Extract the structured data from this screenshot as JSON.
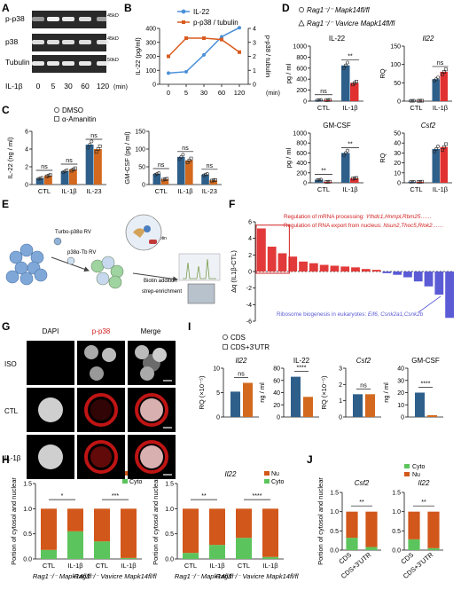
{
  "panels": {
    "A": {
      "letter": "A",
      "blots": [
        "p-p38",
        "p38",
        "Tubulin"
      ],
      "kda": [
        "45kD",
        "45kD",
        "50kD"
      ],
      "treatment": "IL-1β",
      "times": [
        "0",
        "5",
        "30",
        "60",
        "120"
      ],
      "unit": "(min)"
    },
    "B": {
      "letter": "B"
    },
    "C": {
      "letter": "C"
    },
    "D": {
      "letter": "D"
    },
    "E": {
      "letter": "E",
      "text_turbo": "Turbo-p38α RV",
      "text_p38tb": "p38α-Tb RV",
      "text_biotin": "biotin",
      "text_biotin_add": "Biotin addition",
      "text_strep": "strep-enrichment"
    },
    "F": {
      "letter": "F"
    },
    "G": {
      "letter": "G",
      "cols": [
        "DAPI",
        "p-p38",
        "Merge"
      ],
      "rows": [
        "ISO",
        "CTL",
        "IL-1β"
      ]
    },
    "H": {
      "letter": "H"
    },
    "I": {
      "letter": "I"
    },
    "J": {
      "letter": "J"
    }
  },
  "colors": {
    "blue": "#2e5f8a",
    "orange": "#d2691e",
    "red": "#e03030",
    "salmon": "#f08070",
    "lineblue": "#4a90d9",
    "lineorange": "#d95b1f",
    "green": "#5cc45c",
    "nuorange": "#d2571a",
    "fred": "#e23a3a",
    "fblue": "#5b5bd6"
  },
  "chart_data": [
    {
      "id": "B",
      "type": "line",
      "x": [
        "0",
        "5",
        "30",
        "60",
        "120"
      ],
      "xunit": "(min)",
      "ylabel": "IL-22 (pg/ml)",
      "y2label": "p-p38 / tubulin",
      "ylim": [
        0,
        400
      ],
      "y2lim": [
        0,
        4
      ],
      "yticks": [
        "0",
        "100",
        "200",
        "300",
        "400"
      ],
      "y2ticks": [
        "0",
        "1",
        "2",
        "3",
        "4"
      ],
      "series": [
        {
          "name": "IL-22",
          "axis": "left",
          "values": [
            80,
            90,
            210,
            340,
            405
          ]
        },
        {
          "name": "p-p38 / tubulin",
          "axis": "right",
          "values": [
            2.0,
            3.3,
            3.3,
            3.2,
            2.3
          ]
        }
      ]
    },
    {
      "id": "C1",
      "type": "bar",
      "ylabel": "IL-22 (ng / ml)",
      "ylim": [
        0,
        6
      ],
      "yticks": [
        "0",
        "2",
        "4",
        "6"
      ],
      "categories": [
        "CTL",
        "IL-1β",
        "IL-23"
      ],
      "series": [
        {
          "name": "DMSO",
          "values": [
            0.7,
            1.5,
            4.5
          ]
        },
        {
          "name": "α-Amanitin",
          "values": [
            1.0,
            1.7,
            4.0
          ]
        }
      ],
      "sig": [
        "ns",
        "ns",
        "ns"
      ]
    },
    {
      "id": "C2",
      "type": "bar",
      "ylabel": "GM-CSF (pg / ml)",
      "ylim": [
        0,
        150
      ],
      "yticks": [
        "0",
        "50",
        "100",
        "150"
      ],
      "categories": [
        "CTL",
        "IL-1β",
        "IL-23"
      ],
      "series": [
        {
          "name": "DMSO",
          "values": [
            30,
            78,
            28
          ]
        },
        {
          "name": "α-Amanitin",
          "values": [
            15,
            68,
            12
          ]
        }
      ],
      "sig": [
        "ns",
        "ns",
        "ns"
      ]
    },
    {
      "id": "D1",
      "type": "bar",
      "title": "IL-22",
      "ylabel": "pg / ml",
      "ylim": [
        0,
        1000
      ],
      "yticks": [
        "0",
        "200",
        "400",
        "600",
        "800",
        "1000"
      ],
      "categories": [
        "CTL",
        "IL-1β"
      ],
      "series": [
        {
          "name": "Rag1⁻/⁻ Mapk14fl/fl",
          "values": [
            20,
            650
          ]
        },
        {
          "name": "Rag1⁻/⁻ Vavicre Mapk14fl/fl",
          "values": [
            20,
            330
          ]
        }
      ],
      "sig": [
        "ns",
        "**"
      ]
    },
    {
      "id": "D2",
      "type": "bar",
      "title": "Il22",
      "ylabel": "RQ",
      "ylim": [
        0,
        150
      ],
      "yticks": [
        "0",
        "50",
        "100",
        "150"
      ],
      "categories": [
        "CTL",
        "IL-1β"
      ],
      "series": [
        {
          "name": "Rag1⁻/⁻ Mapk14fl/fl",
          "values": [
            1,
            60
          ]
        },
        {
          "name": "Rag1⁻/⁻ Vavicre Mapk14fl/fl",
          "values": [
            1,
            80
          ]
        }
      ],
      "sig": [
        "",
        "ns"
      ]
    },
    {
      "id": "D3",
      "type": "bar",
      "title": "GM-CSF",
      "ylabel": "pg / ml",
      "ylim": [
        0,
        1000
      ],
      "yticks": [
        "0",
        "200",
        "400",
        "600",
        "800",
        "1000"
      ],
      "categories": [
        "CTL",
        "IL-1β"
      ],
      "series": [
        {
          "name": "Rag1⁻/⁻ Mapk14fl/fl",
          "values": [
            60,
            600
          ]
        },
        {
          "name": "Rag1⁻/⁻ Vavicre Mapk14fl/fl",
          "values": [
            20,
            90
          ]
        }
      ],
      "sig": [
        "**",
        "**"
      ]
    },
    {
      "id": "D4",
      "type": "bar",
      "title": "Csf2",
      "ylabel": "RQ",
      "ylim": [
        0,
        50
      ],
      "yticks": [
        "0",
        "10",
        "20",
        "30",
        "40",
        "50"
      ],
      "categories": [
        "CTL",
        "IL-1β"
      ],
      "series": [
        {
          "name": "Rag1⁻/⁻ Mapk14fl/fl",
          "values": [
            1,
            34
          ]
        },
        {
          "name": "Rag1⁻/⁻ Vavicre Mapk14fl/fl",
          "values": [
            1,
            36
          ]
        }
      ],
      "sig": [
        "",
        ""
      ]
    },
    {
      "id": "F",
      "type": "bar",
      "ylabel": "Δq (IL1β-CTL)",
      "ylim": [
        -6,
        6
      ],
      "yticks": [
        "-6",
        "-4",
        "-2",
        "0",
        "2",
        "4",
        "6"
      ],
      "values": [
        5.2,
        3.0,
        2.2,
        1.8,
        1.2,
        1.0,
        0.8,
        0.7,
        0.6,
        0.5,
        0.3,
        0.2,
        -0.2,
        -0.4,
        -0.7,
        -1.2,
        -1.8,
        -2.8,
        -5.6
      ],
      "annotations": [
        {
          "text_plain": "Regulation of mRNA processing: ",
          "text_genes": "Ythdc1,Hnmpl,Rbm25……"
        },
        {
          "text_plain": "Regulation of RNA export from nucleus: ",
          "text_genes": "Nsun2,Thoc5,Rlok2……"
        },
        {
          "text_plain": "Ribosome biogenesis in eukaryotes: ",
          "text_genes": "Eif6, Csnk2a1,Csnk2b"
        }
      ]
    },
    {
      "id": "H1",
      "type": "bar",
      "title": "Csf2",
      "ylabel": "Portion of cytosol and nuclear",
      "ylim": [
        0,
        1.5
      ],
      "yticks": [
        "0.0",
        "0.5",
        "1.0",
        "1.5"
      ],
      "legend": [
        "Nu",
        "Cyto"
      ],
      "categories": [
        "CTL",
        "IL-1β",
        "CTL",
        "IL-1β"
      ],
      "groups": [
        "Rag1⁻/⁻ Mapk14fl/fl",
        "Rag1⁻/⁻ Vavicre Mapk14fl/fl"
      ],
      "series": [
        {
          "name": "Cyto",
          "values": [
            0.18,
            0.55,
            0.35,
            0.02
          ]
        },
        {
          "name": "Nu",
          "values": [
            0.82,
            0.45,
            0.65,
            0.98
          ]
        }
      ],
      "sig": [
        "*",
        "***"
      ]
    },
    {
      "id": "H2",
      "type": "bar",
      "title": "Il22",
      "ylabel": "Portion of cytosol and nuclear",
      "ylim": [
        0,
        1.5
      ],
      "yticks": [
        "0.0",
        "0.5",
        "1.0",
        "1.5"
      ],
      "legend": [
        "Nu",
        "Cyto"
      ],
      "categories": [
        "CTL",
        "IL-1β",
        "CTL",
        "IL-1β"
      ],
      "groups": [
        "Rag1⁻/⁻ Mapk14fl/fl",
        "Rag1⁻/⁻ Vavicre Mapk14fl/fl"
      ],
      "series": [
        {
          "name": "Cyto",
          "values": [
            0.12,
            0.28,
            0.42,
            0.04
          ]
        },
        {
          "name": "Nu",
          "values": [
            0.88,
            0.72,
            0.58,
            0.96
          ]
        }
      ],
      "sig": [
        "**",
        "****"
      ]
    },
    {
      "id": "I",
      "type": "bar",
      "legend": [
        "CDS",
        "CDS+3'UTR"
      ],
      "subplots": [
        {
          "title": "Il22",
          "ylabel": "RQ (×10⁻⁵)",
          "ylim": [
            0,
            10
          ],
          "yticks": [
            "0",
            "5",
            "10"
          ],
          "values": [
            5.2,
            7.0
          ],
          "sig": "ns"
        },
        {
          "title": "IL-22",
          "ylabel": "ng / ml",
          "ylim": [
            0,
            80
          ],
          "yticks": [
            "0",
            "20",
            "40",
            "60",
            "80"
          ],
          "values": [
            66,
            33
          ],
          "sig": "****"
        },
        {
          "title": "Csf2",
          "ylabel": "RQ (×10⁻⁵)",
          "ylim": [
            0,
            3
          ],
          "yticks": [
            "0",
            "1",
            "2",
            "3"
          ],
          "values": [
            1.4,
            1.4
          ],
          "sig": "ns"
        },
        {
          "title": "GM-CSF",
          "ylabel": "ng / ml",
          "ylim": [
            0,
            40
          ],
          "yticks": [
            "0",
            "10",
            "20",
            "30",
            "40"
          ],
          "values": [
            20,
            1.5
          ],
          "sig": "****"
        }
      ]
    },
    {
      "id": "J",
      "type": "bar",
      "legend": [
        "Cyto",
        "Nu"
      ],
      "ylabel": "Portion of cytosol and nuclear",
      "ylim": [
        0,
        1.5
      ],
      "yticks": [
        "0.0",
        "0.5",
        "1.0",
        "1.5"
      ],
      "subplots": [
        {
          "title": "Csf2",
          "categories": [
            "CDS",
            "CDS+3'UTR"
          ],
          "cyto": [
            0.32,
            0.08
          ],
          "nu": [
            0.68,
            0.92
          ],
          "sig": "**"
        },
        {
          "title": "Il22",
          "categories": [
            "CDS",
            "CDS+3'UTR"
          ],
          "cyto": [
            0.28,
            0.05
          ],
          "nu": [
            0.72,
            0.95
          ],
          "sig": "**"
        }
      ]
    }
  ]
}
